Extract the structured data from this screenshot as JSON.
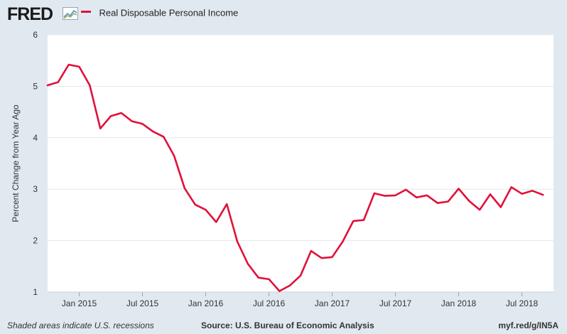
{
  "header": {
    "logo": "FRED"
  },
  "legend": {
    "label": "Real Disposable Personal Income",
    "color": "#e0103a"
  },
  "footer": {
    "recessions_note": "Shaded areas indicate U.S. recessions",
    "source": "Source: U.S. Bureau of Economic Analysis",
    "link": "myf.red/g/IN5A"
  },
  "chart_data": {
    "type": "line",
    "title": "",
    "xlabel": "",
    "ylabel": "Percent Change from Year Ago",
    "ylim": [
      1,
      6
    ],
    "yticks": [
      1,
      2,
      3,
      4,
      5,
      6
    ],
    "xlim": [
      "2014-10",
      "2018-10"
    ],
    "xtick_labels": [
      "Jan 2015",
      "Jul 2015",
      "Jan 2016",
      "Jul 2016",
      "Jan 2017",
      "Jul 2017",
      "Jan 2018",
      "Jul 2018"
    ],
    "xtick_dates": [
      "2015-01",
      "2015-07",
      "2016-01",
      "2016-07",
      "2017-01",
      "2017-07",
      "2018-01",
      "2018-07"
    ],
    "grid": "horizontal",
    "series": [
      {
        "name": "Real Disposable Personal Income",
        "color": "#e0103a",
        "x": [
          "2014-10",
          "2014-11",
          "2014-12",
          "2015-01",
          "2015-02",
          "2015-03",
          "2015-04",
          "2015-05",
          "2015-06",
          "2015-07",
          "2015-08",
          "2015-09",
          "2015-10",
          "2015-11",
          "2015-12",
          "2016-01",
          "2016-02",
          "2016-03",
          "2016-04",
          "2016-05",
          "2016-06",
          "2016-07",
          "2016-08",
          "2016-09",
          "2016-10",
          "2016-11",
          "2016-12",
          "2017-01",
          "2017-02",
          "2017-03",
          "2017-04",
          "2017-05",
          "2017-06",
          "2017-07",
          "2017-08",
          "2017-09",
          "2017-10",
          "2017-11",
          "2017-12",
          "2018-01",
          "2018-02",
          "2018-03",
          "2018-04",
          "2018-05",
          "2018-06",
          "2018-07",
          "2018-08",
          "2018-09"
        ],
        "y": [
          5.02,
          5.08,
          5.42,
          5.38,
          5.02,
          4.18,
          4.42,
          4.48,
          4.32,
          4.27,
          4.12,
          4.02,
          3.65,
          3.02,
          2.7,
          2.6,
          2.36,
          2.71,
          1.98,
          1.55,
          1.28,
          1.25,
          1.02,
          1.13,
          1.32,
          1.8,
          1.66,
          1.68,
          1.98,
          2.38,
          2.4,
          2.92,
          2.87,
          2.88,
          2.99,
          2.84,
          2.88,
          2.73,
          2.76,
          3.01,
          2.77,
          2.6,
          2.9,
          2.65,
          3.04,
          2.91,
          2.97,
          2.89
        ]
      }
    ]
  }
}
